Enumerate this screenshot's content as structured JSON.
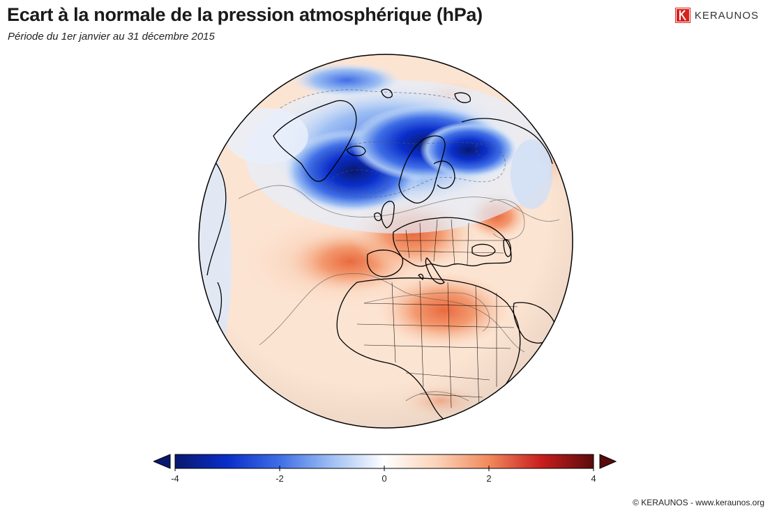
{
  "header": {
    "title": "Ecart à la normale de la pression atmosphérique (hPa)",
    "subtitle": "Période du 1er janvier au 31 décembre 2015"
  },
  "brand": {
    "name": "KERAUNOS",
    "logo_letter": "K",
    "logo_color": "#d6211d"
  },
  "map": {
    "projection": "orthographic",
    "region": "Europe / North Atlantic / Africa",
    "anomaly_areas": [
      {
        "region": "Iceland / Norwegian Sea / Scandinavia",
        "sign": "negative",
        "approx_min_hPa": -4
      },
      {
        "region": "Greenland east coast",
        "sign": "negative",
        "approx_min_hPa": -2
      },
      {
        "region": "North Atlantic (Azores) / Iberia",
        "sign": "positive",
        "approx_max_hPa": 2
      },
      {
        "region": "Central Europe",
        "sign": "positive",
        "approx_max_hPa": 2
      },
      {
        "region": "Sahara / Libya",
        "sign": "positive",
        "approx_max_hPa": 2
      },
      {
        "region": "Caspian area",
        "sign": "positive",
        "approx_max_hPa": 2
      }
    ]
  },
  "colorbar": {
    "min": -4,
    "max": 4,
    "ticks": [
      "-4",
      "-2",
      "0",
      "2",
      "4"
    ],
    "extend": "both",
    "colors": [
      "#08186e",
      "#0a2ec9",
      "#3f6ee6",
      "#9fc0f3",
      "#ffffff",
      "#fbd3b8",
      "#f1895c",
      "#c81e1e",
      "#5a0b0b"
    ]
  },
  "footer": {
    "copyright": "© KERAUNOS - www.keraunos.org"
  }
}
